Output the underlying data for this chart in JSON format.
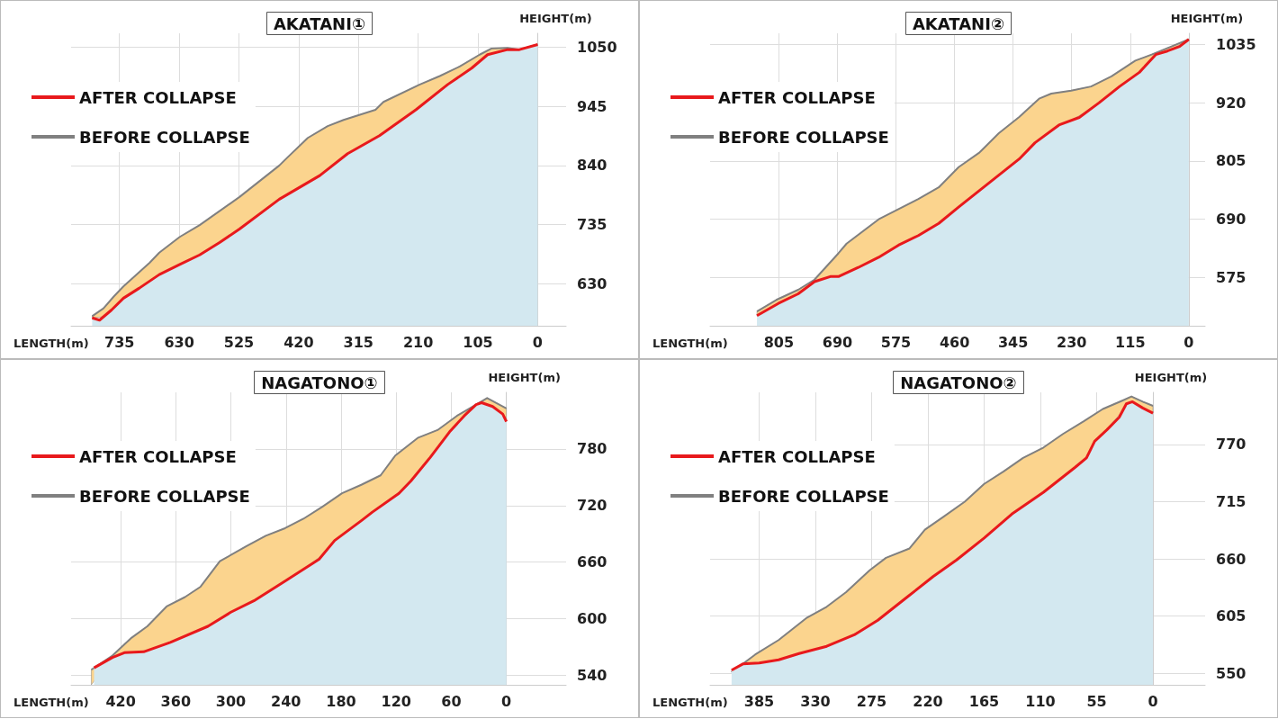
{
  "chart_data": [
    {
      "type": "area",
      "title": "AKATANI①",
      "xlabel": "LENGTH(m)",
      "ylabel": "HEIGHT(m)",
      "xlim": [
        820,
        -50
      ],
      "xticks": [
        735,
        630,
        525,
        420,
        315,
        210,
        105,
        0
      ],
      "ylim": [
        555,
        1075
      ],
      "yticks": [
        630,
        735,
        840,
        945,
        1050
      ],
      "grid": true,
      "legend": "top left",
      "series": [
        {
          "name": "AFTER COLLAPSE",
          "color": "#e8191c",
          "x": [
            783,
            770,
            749,
            728,
            700,
            665,
            629,
            594,
            559,
            524,
            454,
            383,
            334,
            278,
            214,
            158,
            116,
            88,
            53,
            32,
            0
          ],
          "values": [
            569,
            565,
            583,
            604,
            622,
            646,
            664,
            681,
            703,
            727,
            780,
            822,
            861,
            893,
            939,
            984,
            1013,
            1037,
            1046,
            1046,
            1055
          ]
        },
        {
          "name": "BEFORE COLLAPSE",
          "color": "#808080",
          "x": [
            783,
            763,
            745,
            728,
            682,
            665,
            629,
            594,
            524,
            454,
            440,
            404,
            369,
            341,
            285,
            271,
            207,
            172,
            137,
            102,
            81,
            53,
            32,
            0
          ],
          "values": [
            572,
            586,
            607,
            625,
            667,
            685,
            713,
            734,
            784,
            840,
            854,
            889,
            910,
            921,
            939,
            953,
            984,
            999,
            1016,
            1037,
            1048,
            1049,
            1046,
            1055
          ]
        }
      ]
    },
    {
      "type": "area",
      "title": "AKATANI②",
      "xlabel": "LENGTH(m)",
      "ylabel": "HEIGHT(m)",
      "xlim": [
        940,
        -32
      ],
      "xticks": [
        805,
        690,
        575,
        460,
        345,
        230,
        115,
        0
      ],
      "ylim": [
        480,
        1057
      ],
      "yticks": [
        575,
        690,
        805,
        920,
        1035
      ],
      "grid": true,
      "legend": "top left",
      "series": [
        {
          "name": "AFTER COLLAPSE",
          "color": "#e8191c",
          "x": [
            848,
            806,
            767,
            735,
            704,
            688,
            649,
            609,
            570,
            531,
            491,
            452,
            412,
            333,
            302,
            255,
            215,
            176,
            136,
            97,
            65,
            42,
            18,
            0
          ],
          "values": [
            500,
            524,
            543,
            567,
            577,
            577,
            595,
            615,
            639,
            658,
            682,
            714,
            746,
            809,
            841,
            876,
            891,
            920,
            952,
            980,
            1015,
            1022,
            1031,
            1045
          ]
        },
        {
          "name": "BEFORE COLLAPSE",
          "color": "#808080",
          "x": [
            848,
            810,
            767,
            735,
            688,
            672,
            609,
            570,
            531,
            491,
            452,
            412,
            373,
            333,
            294,
            270,
            231,
            192,
            152,
            105,
            73,
            34,
            0
          ],
          "values": [
            508,
            531,
            551,
            571,
            623,
            642,
            690,
            710,
            730,
            753,
            793,
            821,
            860,
            892,
            928,
            938,
            944,
            952,
            972,
            1003,
            1015,
            1031,
            1045
          ]
        }
      ]
    },
    {
      "type": "area",
      "title": "NAGATONO①",
      "xlabel": "LENGTH(m)",
      "ylabel": "HEIGHT(m)",
      "xlim": [
        474,
        -65
      ],
      "xticks": [
        420,
        360,
        300,
        240,
        180,
        120,
        60,
        0
      ],
      "ylim": [
        530,
        840
      ],
      "yticks": [
        540,
        600,
        660,
        720,
        780
      ],
      "grid": true,
      "legend": "top left",
      "series": [
        {
          "name": "AFTER COLLAPSE",
          "color": "#e8191c",
          "x": [
            449,
            429,
            416,
            395,
            366,
            325,
            300,
            275,
            241,
            204,
            187,
            158,
            146,
            117,
            104,
            83,
            62,
            46,
            33,
            27,
            15,
            4,
            0
          ],
          "values": [
            548,
            559,
            564,
            565,
            575,
            592,
            607,
            619,
            640,
            663,
            683,
            704,
            713,
            733,
            746,
            771,
            798,
            815,
            827,
            829,
            825,
            817,
            809
          ]
        },
        {
          "name": "BEFORE COLLAPSE",
          "color": "#808080",
          "x": [
            452,
            429,
            408,
            391,
            370,
            350,
            333,
            312,
            283,
            262,
            241,
            221,
            200,
            179,
            158,
            137,
            121,
            96,
            75,
            54,
            33,
            21,
            0
          ],
          "values": [
            546,
            561,
            580,
            592,
            613,
            623,
            634,
            661,
            677,
            688,
            696,
            706,
            719,
            733,
            742,
            752,
            773,
            792,
            800,
            815,
            827,
            834,
            823
          ]
        }
      ]
    },
    {
      "type": "area",
      "title": "NAGATONO②",
      "xlabel": "LENGTH(m)",
      "ylabel": "HEIGHT(m)",
      "xlim": [
        433,
        -51
      ],
      "xticks": [
        385,
        330,
        275,
        220,
        165,
        110,
        55,
        0
      ],
      "ylim": [
        539,
        820
      ],
      "yticks": [
        550,
        605,
        660,
        715,
        770
      ],
      "grid": true,
      "legend": "top left",
      "series": [
        {
          "name": "AFTER COLLAPSE",
          "color": "#e8191c",
          "x": [
            412,
            401,
            385,
            366,
            346,
            319,
            292,
            269,
            242,
            215,
            192,
            165,
            138,
            107,
            76,
            65,
            57,
            45,
            33,
            26,
            20,
            10,
            0
          ],
          "values": [
            553,
            559,
            560,
            563,
            569,
            576,
            587,
            601,
            622,
            643,
            659,
            680,
            703,
            724,
            748,
            757,
            773,
            784,
            796,
            809,
            811,
            805,
            800
          ]
        },
        {
          "name": "BEFORE COLLAPSE",
          "color": "#808080",
          "x": [
            412,
            389,
            366,
            339,
            319,
            300,
            277,
            261,
            238,
            223,
            204,
            184,
            165,
            146,
            127,
            107,
            88,
            68,
            49,
            30,
            21,
            10,
            0
          ],
          "values": [
            551,
            568,
            582,
            603,
            614,
            628,
            649,
            661,
            670,
            688,
            701,
            715,
            732,
            744,
            757,
            767,
            780,
            792,
            804,
            812,
            816,
            811,
            807
          ]
        }
      ]
    }
  ]
}
